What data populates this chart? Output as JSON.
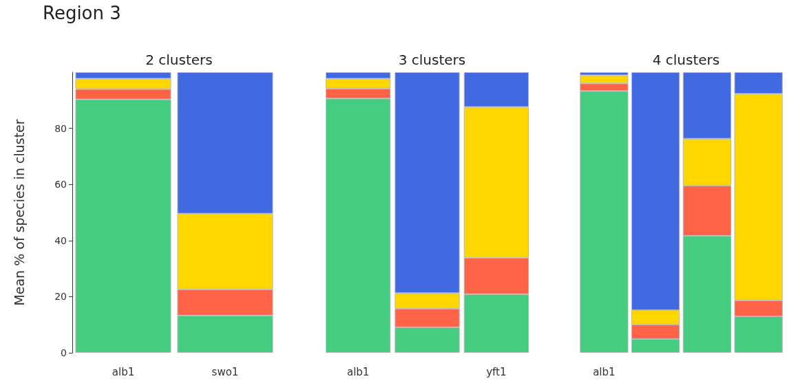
{
  "chart_data": [
    {
      "type": "bar",
      "stacked": true,
      "title": "2 clusters",
      "ylabel": "Mean % of species in cluster",
      "annotations": [
        "Region 3"
      ],
      "categories": [
        "alb1",
        "swo1"
      ],
      "ylim": [
        0,
        100
      ],
      "yticks": [
        0,
        20,
        40,
        60,
        80
      ],
      "grid": false,
      "series": [
        {
          "color": "#44cd80",
          "values": [
            90.3,
            13.3
          ]
        },
        {
          "color": "#ff6347",
          "values": [
            3.7,
            9.3
          ]
        },
        {
          "color": "#ffd700",
          "values": [
            3.7,
            27.0
          ]
        },
        {
          "color": "#4169e1",
          "values": [
            2.3,
            50.4
          ]
        }
      ]
    },
    {
      "type": "bar",
      "stacked": true,
      "title": "3 clusters",
      "categories": [
        "alb1",
        null,
        "yft1"
      ],
      "ylim": [
        0,
        100
      ],
      "tick_labels": "x",
      "grid": false,
      "series": [
        {
          "color": "#44cd80",
          "values": [
            90.6,
            9.1,
            20.9
          ]
        },
        {
          "color": "#ff6347",
          "values": [
            3.6,
            6.6,
            13.0
          ]
        },
        {
          "color": "#ffd700",
          "values": [
            3.5,
            5.6,
            53.7
          ]
        },
        {
          "color": "#4169e1",
          "values": [
            2.3,
            78.7,
            12.4
          ]
        }
      ]
    },
    {
      "type": "bar",
      "stacked": true,
      "title": "4 clusters",
      "categories": [
        "alb1",
        null,
        null,
        null
      ],
      "ylim": [
        0,
        100
      ],
      "tick_labels": "x",
      "grid": false,
      "series": [
        {
          "color": "#44cd80",
          "values": [
            93.3,
            4.9,
            41.7,
            13.0
          ]
        },
        {
          "color": "#ff6347",
          "values": [
            2.7,
            5.2,
            17.9,
            5.7
          ]
        },
        {
          "color": "#ffd700",
          "values": [
            2.9,
            5.1,
            16.7,
            73.6
          ]
        },
        {
          "color": "#4169e1",
          "values": [
            1.1,
            84.8,
            23.7,
            7.7
          ]
        }
      ]
    }
  ]
}
